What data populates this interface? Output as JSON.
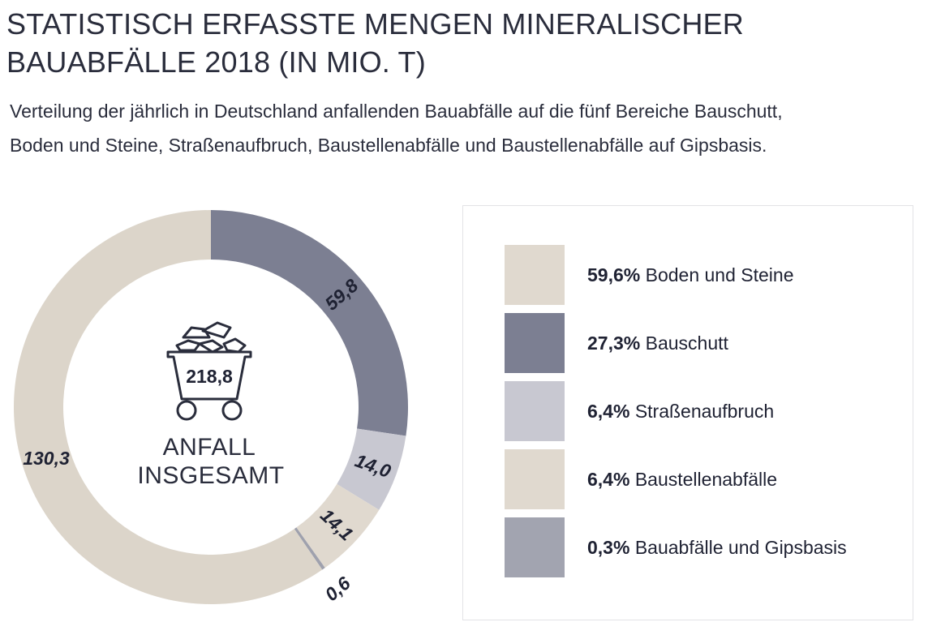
{
  "header": {
    "title_line1": "STATISTISCH ERFASSTE MENGEN MINERALISCHER",
    "title_line2": "BAUABFÄLLE 2018 (IN MIO. T)",
    "subtitle_line1": "Verteilung der jährlich in Deutschland anfallenden Bauabfälle auf die fünf Bereiche Bauschutt,",
    "subtitle_line2": "Boden und Steine, Straßenaufbruch, Baustellenabfälle und Baustellenabfälle auf Gipsbasis."
  },
  "chart_data": {
    "type": "pie",
    "title": "STATISTISCH ERFASSTE MENGEN MINERALISCHER BAUABFÄLLE 2018 (IN MIO. T)",
    "total": {
      "value": "218,8",
      "label_line1": "ANFALL",
      "label_line2": "INSGESAMT"
    },
    "slices": [
      {
        "value": 59.8,
        "label": "59,8",
        "color": "#7c7f92"
      },
      {
        "value": 14.0,
        "label": "14,0",
        "color": "#c8c8d1"
      },
      {
        "value": 14.1,
        "label": "14,1",
        "color": "#e0d9cf"
      },
      {
        "value": 0.6,
        "label": "0,6",
        "color": "#9fa1ad"
      },
      {
        "value": 130.3,
        "label": "130,3",
        "color": "#dcd5ca"
      }
    ],
    "legend": [
      {
        "percent": "59,6%",
        "name": "Boden und Steine",
        "color": "#e0d9cf"
      },
      {
        "percent": "27,3%",
        "name": "Bauschutt",
        "color": "#7c7f92"
      },
      {
        "percent": "6,4%",
        "name": "Straßenaufbruch",
        "color": "#c8c8d1"
      },
      {
        "percent": "6,4%",
        "name": "Baustellenabfälle",
        "color": "#e0d9cf"
      },
      {
        "percent": "0,3%",
        "name": "Bauabfälle und Gipsbasis",
        "color": "#a2a4b0"
      }
    ],
    "legend_position": "right"
  },
  "icons": {
    "center": "mine-cart-icon"
  }
}
